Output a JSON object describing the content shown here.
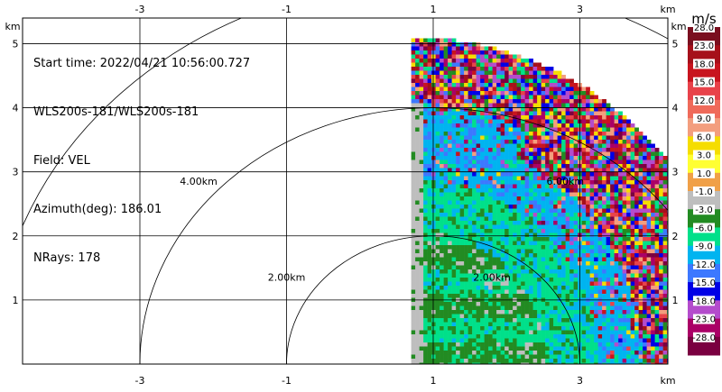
{
  "info": {
    "start_time": "Start time: 2022/04/21 10:56:00.727",
    "instrument": "WLS200s-181/WLS200s-181",
    "field": "Field: VEL",
    "azimuth": "Azimuth(deg): 186.01",
    "nrays": "NRays: 178"
  },
  "colorbar": {
    "unit": "m/s",
    "labels": [
      "28.0",
      "23.0",
      "18.0",
      "15.0",
      "12.0",
      "9.0",
      "6.0",
      "3.0",
      "1.0",
      "-1.0",
      "-3.0",
      "-6.0",
      "-9.0",
      "-12.0",
      "-15.0",
      "-18.0",
      "-23.0",
      "-28.0"
    ],
    "colors": [
      "#7a0f1f",
      "#a6101a",
      "#c8141e",
      "#e8424a",
      "#ef6a5a",
      "#f39e7e",
      "#f5dd00",
      "#ffff33",
      "#f0a048",
      "#bebebe",
      "#228b22",
      "#00e08a",
      "#00b4f0",
      "#3c78ff",
      "#0000e6",
      "#b44ccc",
      "#aa0066",
      "#7a0040"
    ]
  },
  "chart_data": {
    "type": "heatmap",
    "description_fields": [
      "velocity PPI quadrant"
    ],
    "x_unit_label": "km",
    "y_unit_label": "km",
    "xlim": [
      -4.6,
      4.2
    ],
    "ylim": [
      0,
      5.4
    ],
    "x_ticks": [
      -3,
      -1,
      1,
      3
    ],
    "y_ticks": [
      1,
      2,
      3,
      4,
      5
    ],
    "x_tick_labels": [
      "-3",
      "-1",
      "1",
      "3"
    ],
    "y_tick_labels": [
      "1",
      "2",
      "3",
      "4",
      "5"
    ],
    "range_rings_km": [
      2.0,
      4.0,
      6.0
    ],
    "range_ring_labels": [
      "2.00km",
      "4.00km",
      "6.00km",
      "2.00km"
    ],
    "grid": true,
    "azimuth_deg": 186.01,
    "nrays": 178,
    "data_extent_km": {
      "x_start": 0.7,
      "max_range": 5.1
    },
    "value_units": "m/s",
    "bands": [
      {
        "range_km": [
          0.0,
          0.5
        ],
        "velocity": -3.0
      },
      {
        "range_km": [
          0.5,
          2.0
        ],
        "velocity": -3.0
      },
      {
        "range_km": [
          2.0,
          3.0
        ],
        "velocity": -6.0
      },
      {
        "range_km": [
          3.0,
          4.0
        ],
        "velocity": -9.0
      },
      {
        "range_km": [
          4.0,
          5.1
        ],
        "velocity": "noisy"
      }
    ]
  }
}
